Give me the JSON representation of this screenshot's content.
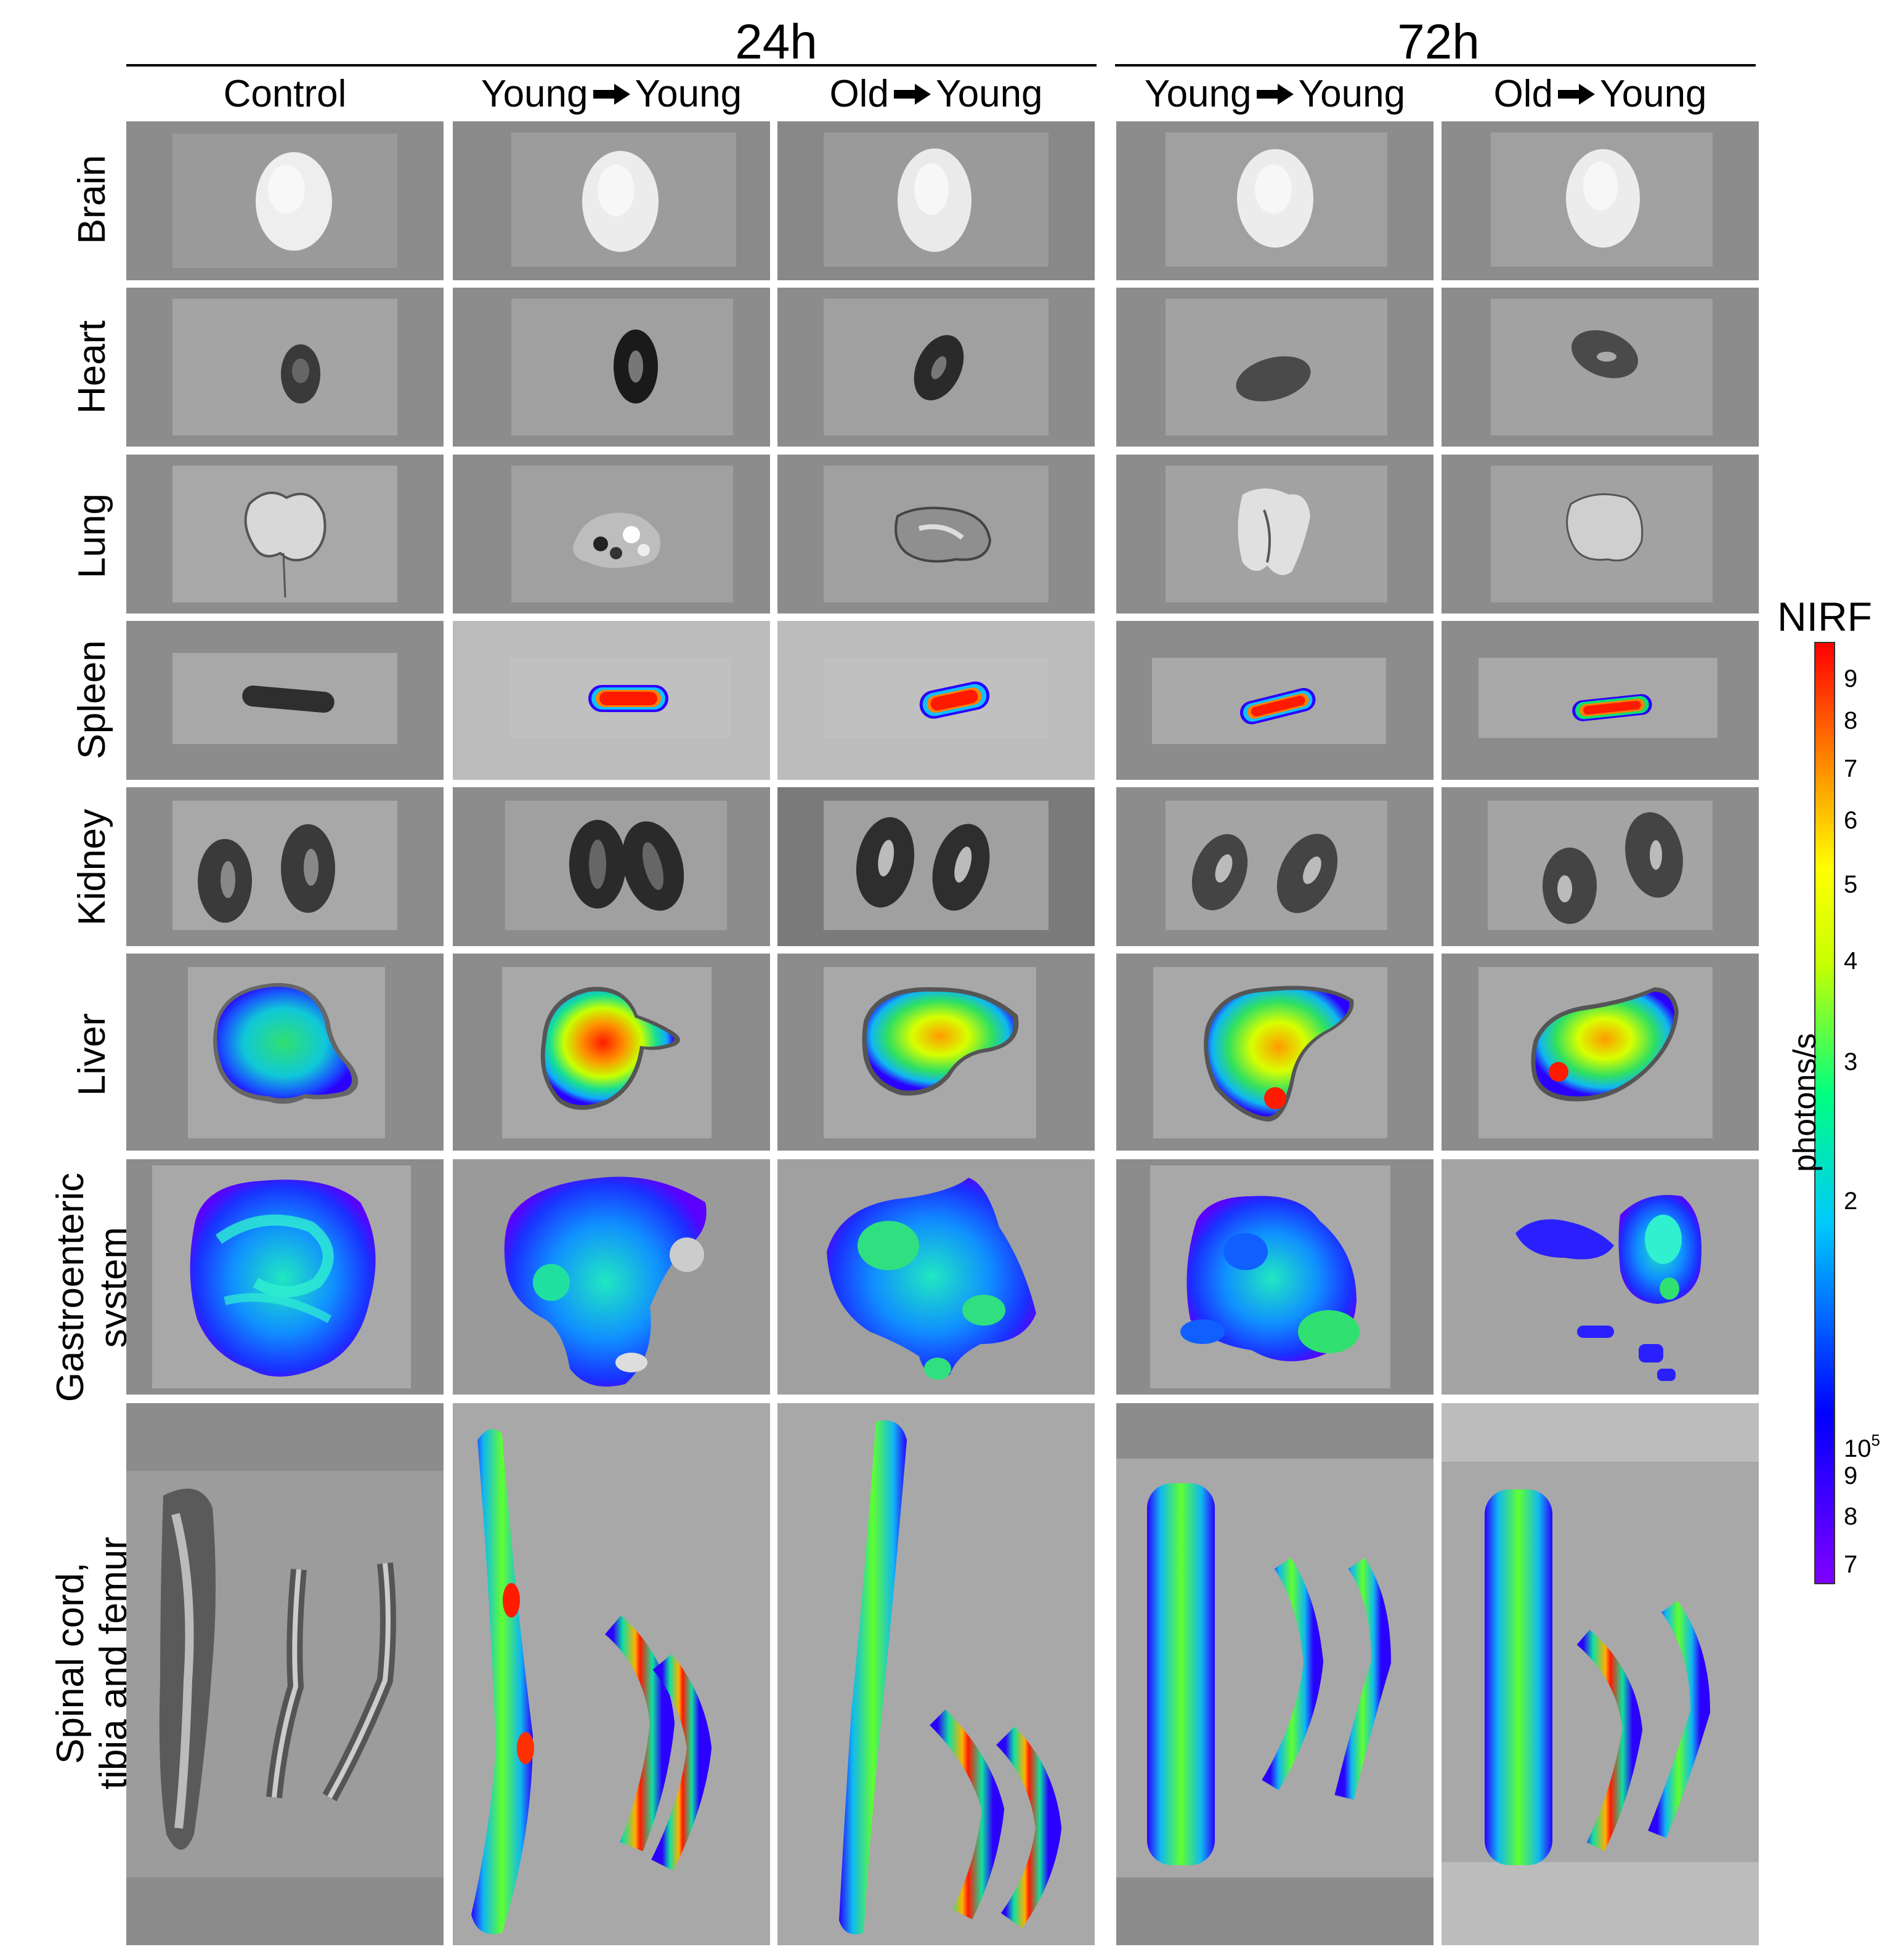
{
  "groups": [
    {
      "label": "24h"
    },
    {
      "label": "72h"
    }
  ],
  "columns": [
    {
      "label": "Control",
      "from": "",
      "to": ""
    },
    {
      "label": "",
      "from": "Young",
      "to": "Young"
    },
    {
      "label": "",
      "from": "Old",
      "to": "Young"
    },
    {
      "label": "",
      "from": "Young",
      "to": "Young"
    },
    {
      "label": "",
      "from": "Old",
      "to": "Young"
    }
  ],
  "rows": [
    {
      "label": "Brain"
    },
    {
      "label": "Heart"
    },
    {
      "label": "Lung"
    },
    {
      "label": "Spleen"
    },
    {
      "label": "Kidney"
    },
    {
      "label": "Liver"
    },
    {
      "label": "Gastroenteric",
      "label2": "system"
    },
    {
      "label": "Spinal cord,",
      "label2": "tibia and femur"
    }
  ],
  "colorbar": {
    "title": "NIRF",
    "axis_label": "photons/s",
    "ticks": [
      {
        "text": "9"
      },
      {
        "text": "8"
      },
      {
        "text": "7"
      },
      {
        "text": "6"
      },
      {
        "text": "5"
      },
      {
        "text": "4"
      },
      {
        "text": "3"
      },
      {
        "text": "2"
      },
      {
        "text": "10",
        "sup": "5"
      },
      {
        "text": "9"
      },
      {
        "text": "8"
      },
      {
        "text": "7"
      }
    ],
    "colors": [
      "#7f00ff",
      "#0000ff",
      "#00c8ff",
      "#00ff80",
      "#c8ff00",
      "#ffff00",
      "#ff8000",
      "#ff0000"
    ]
  }
}
